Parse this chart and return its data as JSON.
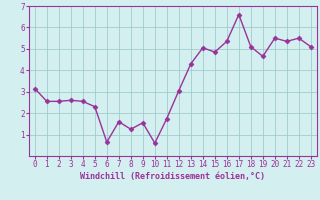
{
  "x": [
    0,
    1,
    2,
    3,
    4,
    5,
    6,
    7,
    8,
    9,
    10,
    11,
    12,
    13,
    14,
    15,
    16,
    17,
    18,
    19,
    20,
    21,
    22,
    23
  ],
  "y": [
    3.15,
    2.55,
    2.55,
    2.6,
    2.55,
    2.3,
    0.65,
    1.6,
    1.25,
    1.55,
    0.6,
    1.75,
    3.05,
    4.3,
    5.05,
    4.85,
    5.35,
    6.6,
    5.1,
    4.65,
    5.5,
    5.35,
    5.5,
    5.1
  ],
  "line_color": "#993399",
  "marker": "D",
  "markersize": 2.5,
  "linewidth": 1.0,
  "bg_color": "#d4efef",
  "grid_color": "#a0cccc",
  "axis_color": "#993399",
  "xlabel": "Windchill (Refroidissement éolien,°C)",
  "xlim": [
    -0.5,
    23.5
  ],
  "ylim": [
    0,
    7
  ],
  "yticks": [
    1,
    2,
    3,
    4,
    5,
    6,
    7
  ],
  "xticks": [
    0,
    1,
    2,
    3,
    4,
    5,
    6,
    7,
    8,
    9,
    10,
    11,
    12,
    13,
    14,
    15,
    16,
    17,
    18,
    19,
    20,
    21,
    22,
    23
  ],
  "font_color": "#993399",
  "tick_fontsize": 5.5,
  "label_fontsize": 6.0
}
